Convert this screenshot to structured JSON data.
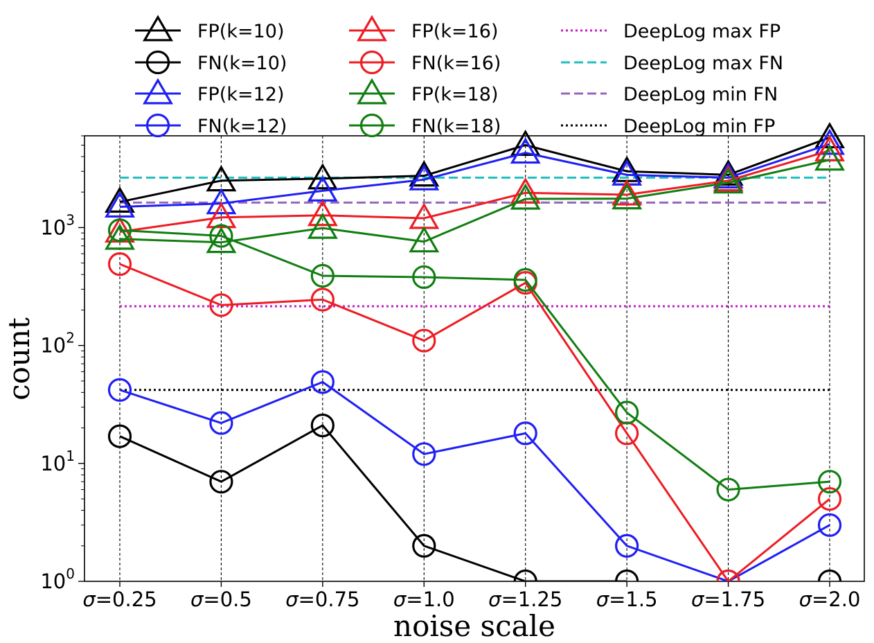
{
  "chart_data": {
    "type": "line",
    "title": "",
    "xlabel": "noise scale",
    "ylabel": "count",
    "yscale": "log",
    "ylim": [
      1,
      6000
    ],
    "yticks": [
      {
        "value": 1,
        "base": "10",
        "exp": "0"
      },
      {
        "value": 10,
        "base": "10",
        "exp": "1"
      },
      {
        "value": 100,
        "base": "10",
        "exp": "2"
      },
      {
        "value": 1000,
        "base": "10",
        "exp": "3"
      }
    ],
    "x_prefix": "σ",
    "x": [
      "=0.25",
      "=0.5",
      "=0.75",
      "=1.0",
      "=1.25",
      "=1.5",
      "=1.75",
      "=2.0"
    ],
    "grid": "vertical dashed lines at each x tick",
    "legend_position": "top, above plot, three columns",
    "series": [
      {
        "name": "FP(k=10)",
        "color": "#000000",
        "marker": "triangle",
        "values": [
          1650,
          2500,
          2600,
          2750,
          5000,
          3000,
          2800,
          5800
        ]
      },
      {
        "name": "FN(k=10)",
        "color": "#000000",
        "marker": "circle",
        "values": [
          17,
          7,
          21,
          2,
          1,
          1,
          null,
          1
        ]
      },
      {
        "name": "FP(k=12)",
        "color": "#1f1ff5",
        "marker": "triangle",
        "values": [
          1500,
          1600,
          2050,
          2550,
          4300,
          2800,
          2650,
          5100
        ]
      },
      {
        "name": "FN(k=12)",
        "color": "#1f1ff5",
        "marker": "circle",
        "values": [
          42,
          22,
          49,
          12,
          18,
          2,
          1,
          3
        ]
      },
      {
        "name": "FP(k=16)",
        "color": "#ee1c23",
        "marker": "triangle",
        "values": [
          920,
          1220,
          1270,
          1200,
          1970,
          1900,
          2500,
          4500
        ]
      },
      {
        "name": "FN(k=16)",
        "color": "#ee1c23",
        "marker": "circle",
        "values": [
          490,
          220,
          245,
          110,
          340,
          18,
          1,
          5
        ]
      },
      {
        "name": "FP(k=18)",
        "color": "#117e11",
        "marker": "triangle",
        "values": [
          800,
          750,
          990,
          760,
          1750,
          1760,
          2400,
          3750
        ]
      },
      {
        "name": "FN(k=18)",
        "color": "#117e11",
        "marker": "circle",
        "values": [
          950,
          850,
          390,
          380,
          360,
          27,
          6,
          7
        ]
      }
    ],
    "reference_lines": [
      {
        "name": "DeepLog max FP",
        "color": "#c41ec4",
        "style": "dotted",
        "value": 215
      },
      {
        "name": "DeepLog max FN",
        "color": "#20bfbf",
        "style": "dashed",
        "value": 2650
      },
      {
        "name": "DeepLog min FN",
        "color": "#9467bd",
        "style": "dashed",
        "value": 1630
      },
      {
        "name": "DeepLog min FP",
        "color": "#000000",
        "style": "dotted",
        "value": 42
      }
    ]
  }
}
